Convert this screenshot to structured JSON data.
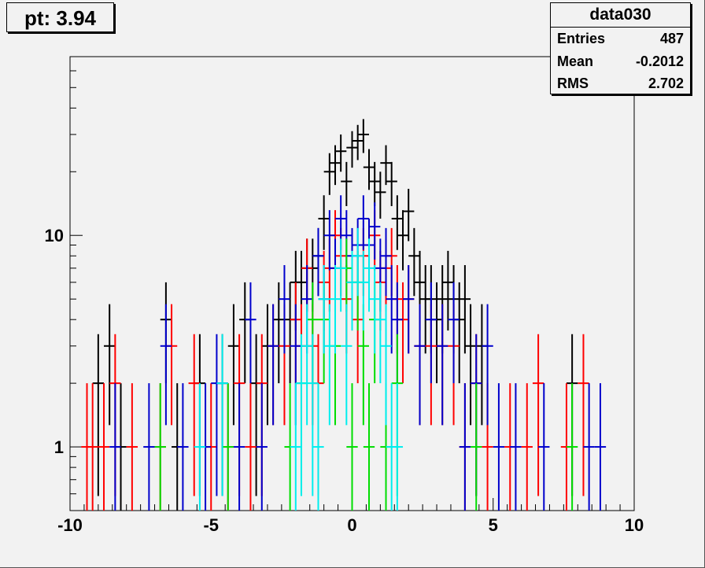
{
  "pave_label": "pt: 3.94",
  "stats": {
    "title": "data030",
    "rows": [
      {
        "label": "Entries",
        "value": "487"
      },
      {
        "label": "Mean",
        "value": "-0.2012"
      },
      {
        "label": "RMS",
        "value": "2.702"
      }
    ]
  },
  "chart_data": {
    "type": "scatter",
    "title": "",
    "xlabel": "",
    "ylabel": "",
    "xlim": [
      -10,
      10
    ],
    "ylim": [
      0.5,
      70
    ],
    "yscale": "log",
    "grid": false,
    "legend": "stats box top-right",
    "x_ticks": [
      "-10",
      "-5",
      "0",
      "5",
      "10"
    ],
    "y_ticks": [
      "1",
      "10"
    ],
    "bin_width": 0.4,
    "colors": {
      "black": "#000000",
      "red": "#ff0000",
      "blue": "#0000cc",
      "green": "#00dd00",
      "cyan": "#00eeee"
    },
    "series": [
      {
        "color": "#000000",
        "points": [
          [
            -9.0,
            2
          ],
          [
            -8.6,
            3
          ],
          [
            -8.2,
            1
          ],
          [
            -6.6,
            4
          ],
          [
            -6.2,
            1
          ],
          [
            -5.4,
            2
          ],
          [
            -4.6,
            2
          ],
          [
            -4.2,
            3
          ],
          [
            -3.8,
            4
          ],
          [
            -3.4,
            2
          ],
          [
            -3.0,
            3
          ],
          [
            -2.6,
            4
          ],
          [
            -2.2,
            4
          ],
          [
            -2.0,
            6
          ],
          [
            -1.8,
            6
          ],
          [
            -1.6,
            7
          ],
          [
            -1.4,
            7
          ],
          [
            -1.2,
            8
          ],
          [
            -1.0,
            12
          ],
          [
            -0.8,
            20
          ],
          [
            -0.6,
            22
          ],
          [
            -0.4,
            25
          ],
          [
            -0.2,
            18
          ],
          [
            0.0,
            26
          ],
          [
            0.2,
            28
          ],
          [
            0.4,
            30
          ],
          [
            0.6,
            21
          ],
          [
            0.8,
            18
          ],
          [
            1.0,
            16
          ],
          [
            1.2,
            22
          ],
          [
            1.4,
            18
          ],
          [
            1.6,
            12
          ],
          [
            1.8,
            10
          ],
          [
            2.0,
            13
          ],
          [
            2.2,
            8
          ],
          [
            2.4,
            6
          ],
          [
            2.6,
            5
          ],
          [
            2.8,
            5
          ],
          [
            3.0,
            4
          ],
          [
            3.2,
            5
          ],
          [
            3.4,
            6
          ],
          [
            3.6,
            5
          ],
          [
            3.8,
            4
          ],
          [
            4.0,
            5
          ],
          [
            4.2,
            3
          ],
          [
            4.6,
            3
          ],
          [
            7.8,
            2
          ]
        ]
      },
      {
        "color": "#ff0000",
        "points": [
          [
            -9.4,
            1
          ],
          [
            -9.2,
            1
          ],
          [
            -8.8,
            1
          ],
          [
            -8.4,
            2
          ],
          [
            -7.8,
            1
          ],
          [
            -6.8,
            1
          ],
          [
            -6.4,
            3
          ],
          [
            -5.6,
            2
          ],
          [
            -5.0,
            1
          ],
          [
            -4.4,
            1
          ],
          [
            -4.0,
            2
          ],
          [
            -3.6,
            1
          ],
          [
            -3.2,
            2
          ],
          [
            -2.8,
            3
          ],
          [
            -2.4,
            3
          ],
          [
            -2.0,
            4
          ],
          [
            -1.8,
            3
          ],
          [
            -1.6,
            7
          ],
          [
            -1.4,
            3
          ],
          [
            -1.2,
            2
          ],
          [
            -1.0,
            6
          ],
          [
            -0.8,
            7
          ],
          [
            -0.6,
            10
          ],
          [
            -0.4,
            8
          ],
          [
            -0.2,
            5
          ],
          [
            0.0,
            6
          ],
          [
            0.2,
            4
          ],
          [
            0.4,
            8
          ],
          [
            0.6,
            9
          ],
          [
            0.8,
            10
          ],
          [
            1.0,
            6
          ],
          [
            1.2,
            7
          ],
          [
            1.4,
            8
          ],
          [
            1.6,
            5
          ],
          [
            1.8,
            4
          ],
          [
            2.0,
            5
          ],
          [
            2.4,
            3
          ],
          [
            2.8,
            3
          ],
          [
            3.2,
            3
          ],
          [
            3.6,
            3
          ],
          [
            4.0,
            1
          ],
          [
            4.4,
            2
          ],
          [
            4.8,
            1
          ],
          [
            5.6,
            1
          ],
          [
            6.2,
            1
          ],
          [
            6.6,
            2
          ],
          [
            7.6,
            1
          ],
          [
            8.2,
            2
          ]
        ]
      },
      {
        "color": "#0000cc",
        "points": [
          [
            -8.4,
            1
          ],
          [
            -7.2,
            1
          ],
          [
            -6.6,
            3
          ],
          [
            -6.0,
            1
          ],
          [
            -5.2,
            1
          ],
          [
            -4.8,
            2
          ],
          [
            -4.0,
            1
          ],
          [
            -3.6,
            4
          ],
          [
            -3.2,
            1
          ],
          [
            -2.8,
            3
          ],
          [
            -2.4,
            5
          ],
          [
            -2.0,
            3
          ],
          [
            -1.6,
            5
          ],
          [
            -1.2,
            8
          ],
          [
            -1.0,
            5
          ],
          [
            -0.8,
            10
          ],
          [
            -0.6,
            7
          ],
          [
            -0.4,
            12
          ],
          [
            -0.2,
            10
          ],
          [
            0.0,
            8
          ],
          [
            0.2,
            9
          ],
          [
            0.4,
            12
          ],
          [
            0.6,
            9
          ],
          [
            0.8,
            11
          ],
          [
            1.0,
            7
          ],
          [
            1.2,
            8
          ],
          [
            1.4,
            5
          ],
          [
            1.6,
            4
          ],
          [
            2.0,
            5
          ],
          [
            2.4,
            3
          ],
          [
            2.8,
            4
          ],
          [
            3.2,
            3
          ],
          [
            3.6,
            4
          ],
          [
            4.0,
            1
          ],
          [
            4.4,
            2
          ],
          [
            4.8,
            3
          ],
          [
            5.2,
            1
          ],
          [
            5.8,
            1
          ],
          [
            6.8,
            1
          ],
          [
            8.4,
            1
          ],
          [
            8.8,
            1
          ]
        ]
      },
      {
        "color": "#00dd00",
        "points": [
          [
            -6.8,
            1
          ],
          [
            -4.4,
            1
          ],
          [
            -2.2,
            1
          ],
          [
            -1.8,
            2
          ],
          [
            -1.4,
            4
          ],
          [
            -1.0,
            4
          ],
          [
            -0.6,
            3
          ],
          [
            -0.2,
            7
          ],
          [
            0.0,
            1
          ],
          [
            0.2,
            6
          ],
          [
            0.4,
            3
          ],
          [
            0.6,
            1
          ],
          [
            0.8,
            4
          ],
          [
            1.2,
            1
          ],
          [
            1.6,
            2
          ],
          [
            4.4,
            1
          ],
          [
            7.8,
            1
          ]
        ]
      },
      {
        "color": "#00eeee",
        "points": [
          [
            -5.4,
            1
          ],
          [
            -4.6,
            2
          ],
          [
            -2.0,
            1
          ],
          [
            -1.8,
            2
          ],
          [
            -1.6,
            3
          ],
          [
            -1.4,
            2
          ],
          [
            -1.2,
            1
          ],
          [
            -1.0,
            5
          ],
          [
            -0.8,
            3
          ],
          [
            -0.6,
            5
          ],
          [
            -0.4,
            7
          ],
          [
            -0.2,
            3
          ],
          [
            0.0,
            6
          ],
          [
            0.2,
            8
          ],
          [
            0.4,
            6
          ],
          [
            0.6,
            7
          ],
          [
            0.8,
            5
          ],
          [
            1.0,
            4
          ],
          [
            1.2,
            3
          ],
          [
            1.4,
            1
          ],
          [
            1.6,
            1
          ]
        ]
      }
    ]
  }
}
